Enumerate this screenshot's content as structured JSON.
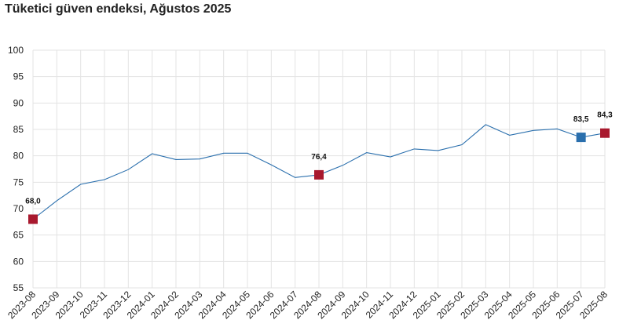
{
  "chart_data": {
    "type": "line",
    "title": "Tüketici güven endeksi, Ağustos 2025",
    "x": [
      "2023-08",
      "2023-09",
      "2023-10",
      "2023-11",
      "2023-12",
      "2024-01",
      "2024-02",
      "2024-03",
      "2024-04",
      "2024-05",
      "2024-06",
      "2024-07",
      "2024-08",
      "2024-09",
      "2024-10",
      "2024-11",
      "2024-12",
      "2025-01",
      "2025-02",
      "2025-03",
      "2025-04",
      "2025-05",
      "2025-06",
      "2025-07",
      "2025-08"
    ],
    "series": [
      {
        "values": [
          68.0,
          71.5,
          74.6,
          75.5,
          77.4,
          80.4,
          79.3,
          79.4,
          80.5,
          80.5,
          78.3,
          75.9,
          76.4,
          78.2,
          80.6,
          79.8,
          81.3,
          81.0,
          82.1,
          85.9,
          83.9,
          84.8,
          85.1,
          83.5,
          84.3
        ]
      }
    ],
    "highlighted_points": [
      {
        "x": "2023-08",
        "value": 68.0,
        "label": "68,0",
        "color": "#a8192e"
      },
      {
        "x": "2024-08",
        "value": 76.4,
        "label": "76,4",
        "color": "#a8192e"
      },
      {
        "x": "2025-07",
        "value": 83.5,
        "label": "83,5",
        "color": "#2a6fad"
      },
      {
        "x": "2025-08",
        "value": 84.3,
        "label": "84,3",
        "color": "#a8192e"
      }
    ],
    "ylim": [
      55,
      100
    ],
    "yticks": [
      55,
      60,
      65,
      70,
      75,
      80,
      85,
      90,
      95,
      100
    ],
    "grid": true,
    "line_color": "#2a6fad"
  }
}
